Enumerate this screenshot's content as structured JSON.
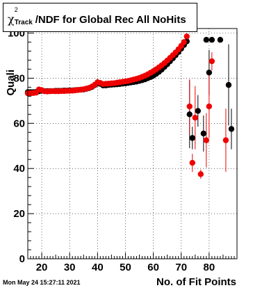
{
  "title": {
    "chi": "χ",
    "sup": "2",
    "sub": "Track",
    "rest": "/NDF for Global Rec All NoHits"
  },
  "timestamp": "Mon May 24 15:27:11 2021",
  "chart_data": {
    "type": "scatter",
    "xlabel": "No. of Fit Points",
    "ylabel": "Quali",
    "xlim": [
      15,
      90
    ],
    "ylim": [
      0,
      102
    ],
    "x_ticks": [
      20,
      30,
      40,
      50,
      60,
      70,
      80
    ],
    "y_ticks": [
      0,
      20,
      40,
      60,
      80,
      100
    ],
    "grid": true,
    "colors": {
      "black": "#000000",
      "red": "#ee0000"
    },
    "series": [
      {
        "color": "black",
        "points": [
          {
            "x": 15,
            "y": 73.8
          },
          {
            "x": 16,
            "y": 73.8
          },
          {
            "x": 17,
            "y": 73.8
          },
          {
            "x": 18,
            "y": 73.9
          },
          {
            "x": 19,
            "y": 74.2
          },
          {
            "x": 20,
            "y": 74.4
          },
          {
            "x": 21,
            "y": 74.3
          },
          {
            "x": 22,
            "y": 74.3
          },
          {
            "x": 23,
            "y": 74.3
          },
          {
            "x": 24,
            "y": 74.3
          },
          {
            "x": 25,
            "y": 74.4
          },
          {
            "x": 26,
            "y": 74.4
          },
          {
            "x": 27,
            "y": 74.4
          },
          {
            "x": 28,
            "y": 74.5
          },
          {
            "x": 29,
            "y": 74.5
          },
          {
            "x": 30,
            "y": 74.6
          },
          {
            "x": 31,
            "y": 74.6
          },
          {
            "x": 32,
            "y": 74.7
          },
          {
            "x": 33,
            "y": 74.8
          },
          {
            "x": 34,
            "y": 74.9
          },
          {
            "x": 35,
            "y": 75.0
          },
          {
            "x": 36,
            "y": 75.3
          },
          {
            "x": 37,
            "y": 75.6
          },
          {
            "x": 38,
            "y": 76.1
          },
          {
            "x": 39,
            "y": 76.9
          },
          {
            "x": 40,
            "y": 77.6
          },
          {
            "x": 41,
            "y": 77.5
          },
          {
            "x": 42,
            "y": 76.8
          },
          {
            "x": 43,
            "y": 76.8
          },
          {
            "x": 44,
            "y": 77.0
          },
          {
            "x": 45,
            "y": 77.1
          },
          {
            "x": 46,
            "y": 77.2
          },
          {
            "x": 47,
            "y": 77.3
          },
          {
            "x": 48,
            "y": 77.4
          },
          {
            "x": 49,
            "y": 77.6
          },
          {
            "x": 50,
            "y": 77.7
          },
          {
            "x": 51,
            "y": 77.9
          },
          {
            "x": 52,
            "y": 78.1
          },
          {
            "x": 53,
            "y": 78.3
          },
          {
            "x": 54,
            "y": 78.5
          },
          {
            "x": 55,
            "y": 78.8
          },
          {
            "x": 56,
            "y": 79.1
          },
          {
            "x": 57,
            "y": 79.5
          },
          {
            "x": 58,
            "y": 80.0
          },
          {
            "x": 59,
            "y": 80.5
          },
          {
            "x": 60,
            "y": 81.1
          },
          {
            "x": 61,
            "y": 81.9
          },
          {
            "x": 62,
            "y": 82.8
          },
          {
            "x": 63,
            "y": 83.8
          },
          {
            "x": 64,
            "y": 85.0
          },
          {
            "x": 65,
            "y": 86.2
          },
          {
            "x": 66,
            "y": 87.5
          },
          {
            "x": 67,
            "y": 88.8
          },
          {
            "x": 68,
            "y": 90.2
          },
          {
            "x": 69,
            "y": 91.6
          },
          {
            "x": 70,
            "y": 93.1
          },
          {
            "x": 71,
            "y": 94.7
          },
          {
            "x": 72,
            "y": 96.3
          },
          {
            "x": 73,
            "y": 64.0,
            "err": 15
          },
          {
            "x": 74,
            "y": 53.5,
            "err": 5
          },
          {
            "x": 76,
            "y": 65.5,
            "err": 7
          },
          {
            "x": 78,
            "y": 55.5,
            "err": 8
          },
          {
            "x": 79,
            "y": 97.0,
            "err": 0
          },
          {
            "x": 80,
            "y": 82.5,
            "err": 10
          },
          {
            "x": 81,
            "y": 97.0,
            "err": 0
          },
          {
            "x": 84,
            "y": 97.0,
            "err": 0
          },
          {
            "x": 87,
            "y": 77.0,
            "err": 18
          },
          {
            "x": 88,
            "y": 57.5,
            "err": 9
          }
        ]
      },
      {
        "color": "red",
        "points": [
          {
            "x": 15,
            "y": 73.3
          },
          {
            "x": 16,
            "y": 73.3
          },
          {
            "x": 17,
            "y": 73.4
          },
          {
            "x": 18,
            "y": 73.6
          },
          {
            "x": 19,
            "y": 75.0
          },
          {
            "x": 20,
            "y": 74.7
          },
          {
            "x": 21,
            "y": 74.2
          },
          {
            "x": 22,
            "y": 74.1
          },
          {
            "x": 23,
            "y": 74.2
          },
          {
            "x": 24,
            "y": 74.3
          },
          {
            "x": 25,
            "y": 74.2
          },
          {
            "x": 26,
            "y": 74.2
          },
          {
            "x": 27,
            "y": 74.3
          },
          {
            "x": 28,
            "y": 74.3
          },
          {
            "x": 29,
            "y": 74.4
          },
          {
            "x": 30,
            "y": 74.4
          },
          {
            "x": 31,
            "y": 74.5
          },
          {
            "x": 32,
            "y": 74.6
          },
          {
            "x": 33,
            "y": 74.8
          },
          {
            "x": 34,
            "y": 74.9
          },
          {
            "x": 35,
            "y": 75.1
          },
          {
            "x": 36,
            "y": 75.4
          },
          {
            "x": 37,
            "y": 75.7
          },
          {
            "x": 38,
            "y": 76.3
          },
          {
            "x": 39,
            "y": 77.1
          },
          {
            "x": 40,
            "y": 78.2
          },
          {
            "x": 41,
            "y": 77.9
          },
          {
            "x": 42,
            "y": 77.4
          },
          {
            "x": 43,
            "y": 77.5
          },
          {
            "x": 44,
            "y": 77.6
          },
          {
            "x": 45,
            "y": 77.7
          },
          {
            "x": 46,
            "y": 77.8
          },
          {
            "x": 47,
            "y": 78.0
          },
          {
            "x": 48,
            "y": 78.2
          },
          {
            "x": 49,
            "y": 78.4
          },
          {
            "x": 50,
            "y": 78.6
          },
          {
            "x": 51,
            "y": 78.8
          },
          {
            "x": 52,
            "y": 79.1
          },
          {
            "x": 53,
            "y": 79.4
          },
          {
            "x": 54,
            "y": 79.7
          },
          {
            "x": 55,
            "y": 80.1
          },
          {
            "x": 56,
            "y": 80.6
          },
          {
            "x": 57,
            "y": 81.1
          },
          {
            "x": 58,
            "y": 81.7
          },
          {
            "x": 59,
            "y": 82.4
          },
          {
            "x": 60,
            "y": 83.1
          },
          {
            "x": 61,
            "y": 83.9
          },
          {
            "x": 62,
            "y": 84.8
          },
          {
            "x": 63,
            "y": 85.7
          },
          {
            "x": 64,
            "y": 86.7
          },
          {
            "x": 65,
            "y": 87.8
          },
          {
            "x": 66,
            "y": 89.0
          },
          {
            "x": 67,
            "y": 90.2
          },
          {
            "x": 68,
            "y": 91.4
          },
          {
            "x": 69,
            "y": 92.8
          },
          {
            "x": 70,
            "y": 94.3
          },
          {
            "x": 71,
            "y": 96.0
          },
          {
            "x": 72,
            "y": 98.5
          },
          {
            "x": 73,
            "y": 67.5,
            "err": 12
          },
          {
            "x": 74,
            "y": 42.5,
            "err": 4
          },
          {
            "x": 75,
            "y": 62.5,
            "err": 14
          },
          {
            "x": 77,
            "y": 37.5,
            "err": 2
          },
          {
            "x": 79,
            "y": 52.5,
            "err": 12
          },
          {
            "x": 80,
            "y": 67.5,
            "err": 14
          },
          {
            "x": 81,
            "y": 87.5,
            "err": 4
          },
          {
            "x": 86,
            "y": 52.5,
            "err": 14
          }
        ]
      }
    ]
  }
}
